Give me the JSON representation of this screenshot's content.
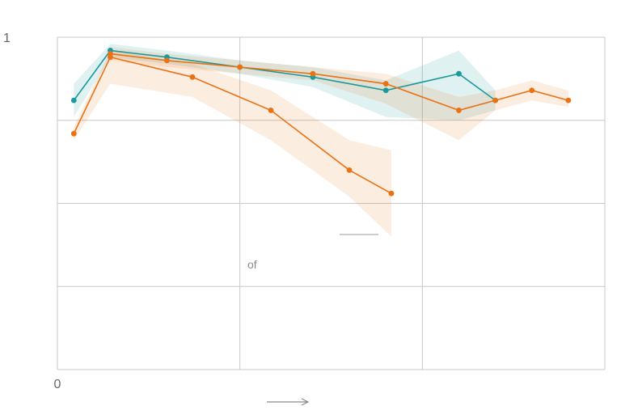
{
  "chart_data": {
    "type": "line",
    "title": "",
    "xlabel": "",
    "ylabel": "",
    "xlim": [
      0,
      3
    ],
    "ylim": [
      0,
      1
    ],
    "grid": true,
    "x_tick_labels": [
      "0",
      "",
      "",
      ""
    ],
    "y_tick_labels": [
      "1",
      "",
      "",
      "",
      ""
    ],
    "annotation_text": "of",
    "colors": {
      "teal": "#1a9a9c",
      "orange": "#ea7114"
    },
    "series": [
      {
        "color": "#1a9a9c",
        "x": [
          0.09,
          0.29,
          0.6,
          1.0,
          1.4,
          1.8,
          2.2,
          2.4
        ],
        "y": [
          0.81,
          0.96,
          0.94,
          0.91,
          0.88,
          0.84,
          0.89,
          0.81
        ],
        "band_upper": [
          0.86,
          0.98,
          0.96,
          0.93,
          0.91,
          0.87,
          0.96,
          0.84
        ],
        "band_lower": [
          0.76,
          0.94,
          0.92,
          0.89,
          0.85,
          0.76,
          0.75,
          0.78
        ]
      },
      {
        "color": "#ea7114",
        "x": [
          0.29,
          0.6,
          1.0,
          1.4,
          1.8,
          2.2,
          2.4,
          2.6,
          2.8
        ],
        "y": [
          0.95,
          0.93,
          0.91,
          0.89,
          0.86,
          0.78,
          0.81,
          0.84,
          0.81
        ],
        "band_upper": [
          0.97,
          0.95,
          0.93,
          0.91,
          0.89,
          0.82,
          0.84,
          0.87,
          0.84
        ],
        "band_lower": [
          0.93,
          0.91,
          0.89,
          0.87,
          0.8,
          0.69,
          0.78,
          0.81,
          0.79
        ]
      },
      {
        "color": "#ea7114",
        "x": [
          0.09,
          0.29,
          0.74,
          1.17,
          1.6,
          1.83
        ],
        "y": [
          0.71,
          0.94,
          0.88,
          0.78,
          0.6,
          0.53
        ],
        "band_upper": [
          0.73,
          0.96,
          0.92,
          0.84,
          0.69,
          0.66
        ],
        "band_lower": [
          0.69,
          0.86,
          0.82,
          0.69,
          0.52,
          0.4
        ]
      }
    ]
  }
}
